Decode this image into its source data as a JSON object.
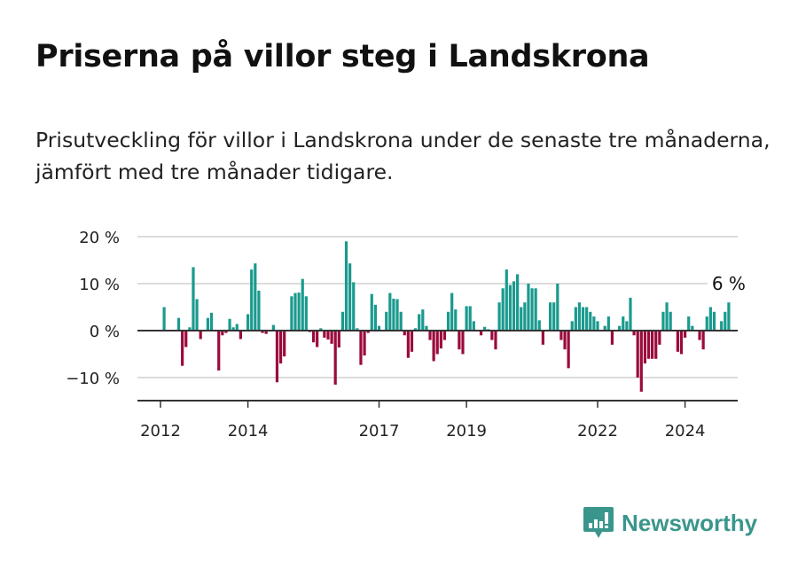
{
  "header": {
    "title": "Priserna på villor steg i Landskrona",
    "subtitle": "Prisutveckling för villor i Landskrona under de senaste tre månaderna, jämfört med tre månader tidigare."
  },
  "brand": {
    "name": "Newsworthy",
    "icon": "bar-chart-speech-bubble-icon",
    "color": "#3a968c"
  },
  "chart_data": {
    "type": "bar",
    "title": "Priserna på villor steg i Landskrona",
    "subtitle": "Prisutveckling för villor i Landskrona under de senaste tre månaderna, jämfört med tre månader tidigare.",
    "xlabel": "",
    "ylabel": "",
    "ylim": [
      -15,
      20
    ],
    "y_ticks": [
      20,
      10,
      0,
      -10
    ],
    "y_tick_labels": [
      "20 %",
      "10 %",
      "0 %",
      "−10 %"
    ],
    "x_ticks": [
      "2012",
      "2014",
      "2017",
      "2019",
      "2022",
      "2024"
    ],
    "grid": true,
    "legend": "none",
    "positive_color": "#1a9a8e",
    "negative_color": "#9b0a3c",
    "annotation": {
      "label": "6 %",
      "value": 6,
      "position": "last-bar"
    },
    "start_month": "2012-02",
    "unit": "%",
    "values": [
      5,
      0,
      0,
      0,
      2.7,
      -7.5,
      -3.5,
      0.7,
      13.5,
      6.7,
      -1.8,
      0,
      2.7,
      3.8,
      0,
      -8.5,
      -1,
      -0.5,
      2.5,
      0.7,
      1.4,
      -1.8,
      0,
      3.5,
      13,
      14.3,
      8.5,
      -0.5,
      -0.7,
      0,
      1.2,
      -11,
      -7,
      -5.5,
      0,
      7.3,
      8,
      8.1,
      11,
      7.3,
      -0.3,
      -2.5,
      -3.5,
      0.5,
      -1.5,
      -1.9,
      -2.8,
      -11.5,
      -3.6,
      4,
      19,
      14.3,
      10.3,
      0.5,
      -7.3,
      -5.3,
      -0.5,
      7.8,
      5.5,
      1,
      0,
      4,
      8,
      6.8,
      6.7,
      4,
      -1,
      -5.8,
      -4.5,
      0.5,
      3.5,
      4.5,
      1,
      -2,
      -6.5,
      -5,
      -3.8,
      -2,
      4,
      8,
      4.5,
      -4,
      -5,
      5.2,
      5.2,
      2,
      0,
      -1,
      0.8,
      0.3,
      -2,
      -4,
      6,
      9,
      13,
      9.7,
      10.5,
      12,
      5,
      6,
      10,
      9,
      9,
      2.2,
      -3,
      0,
      6,
      6,
      10,
      -2,
      -4,
      -8,
      2,
      5,
      6,
      5,
      5,
      4,
      3,
      2,
      0,
      1,
      3,
      -3,
      0,
      1,
      3,
      2,
      7,
      -1,
      -10,
      -13,
      -7,
      -6,
      -6,
      -6,
      -3,
      4,
      6,
      4,
      0,
      -4.5,
      -5,
      -1.5,
      3,
      1,
      0,
      -2,
      -4,
      3,
      5,
      4,
      0,
      2,
      4,
      6
    ]
  }
}
